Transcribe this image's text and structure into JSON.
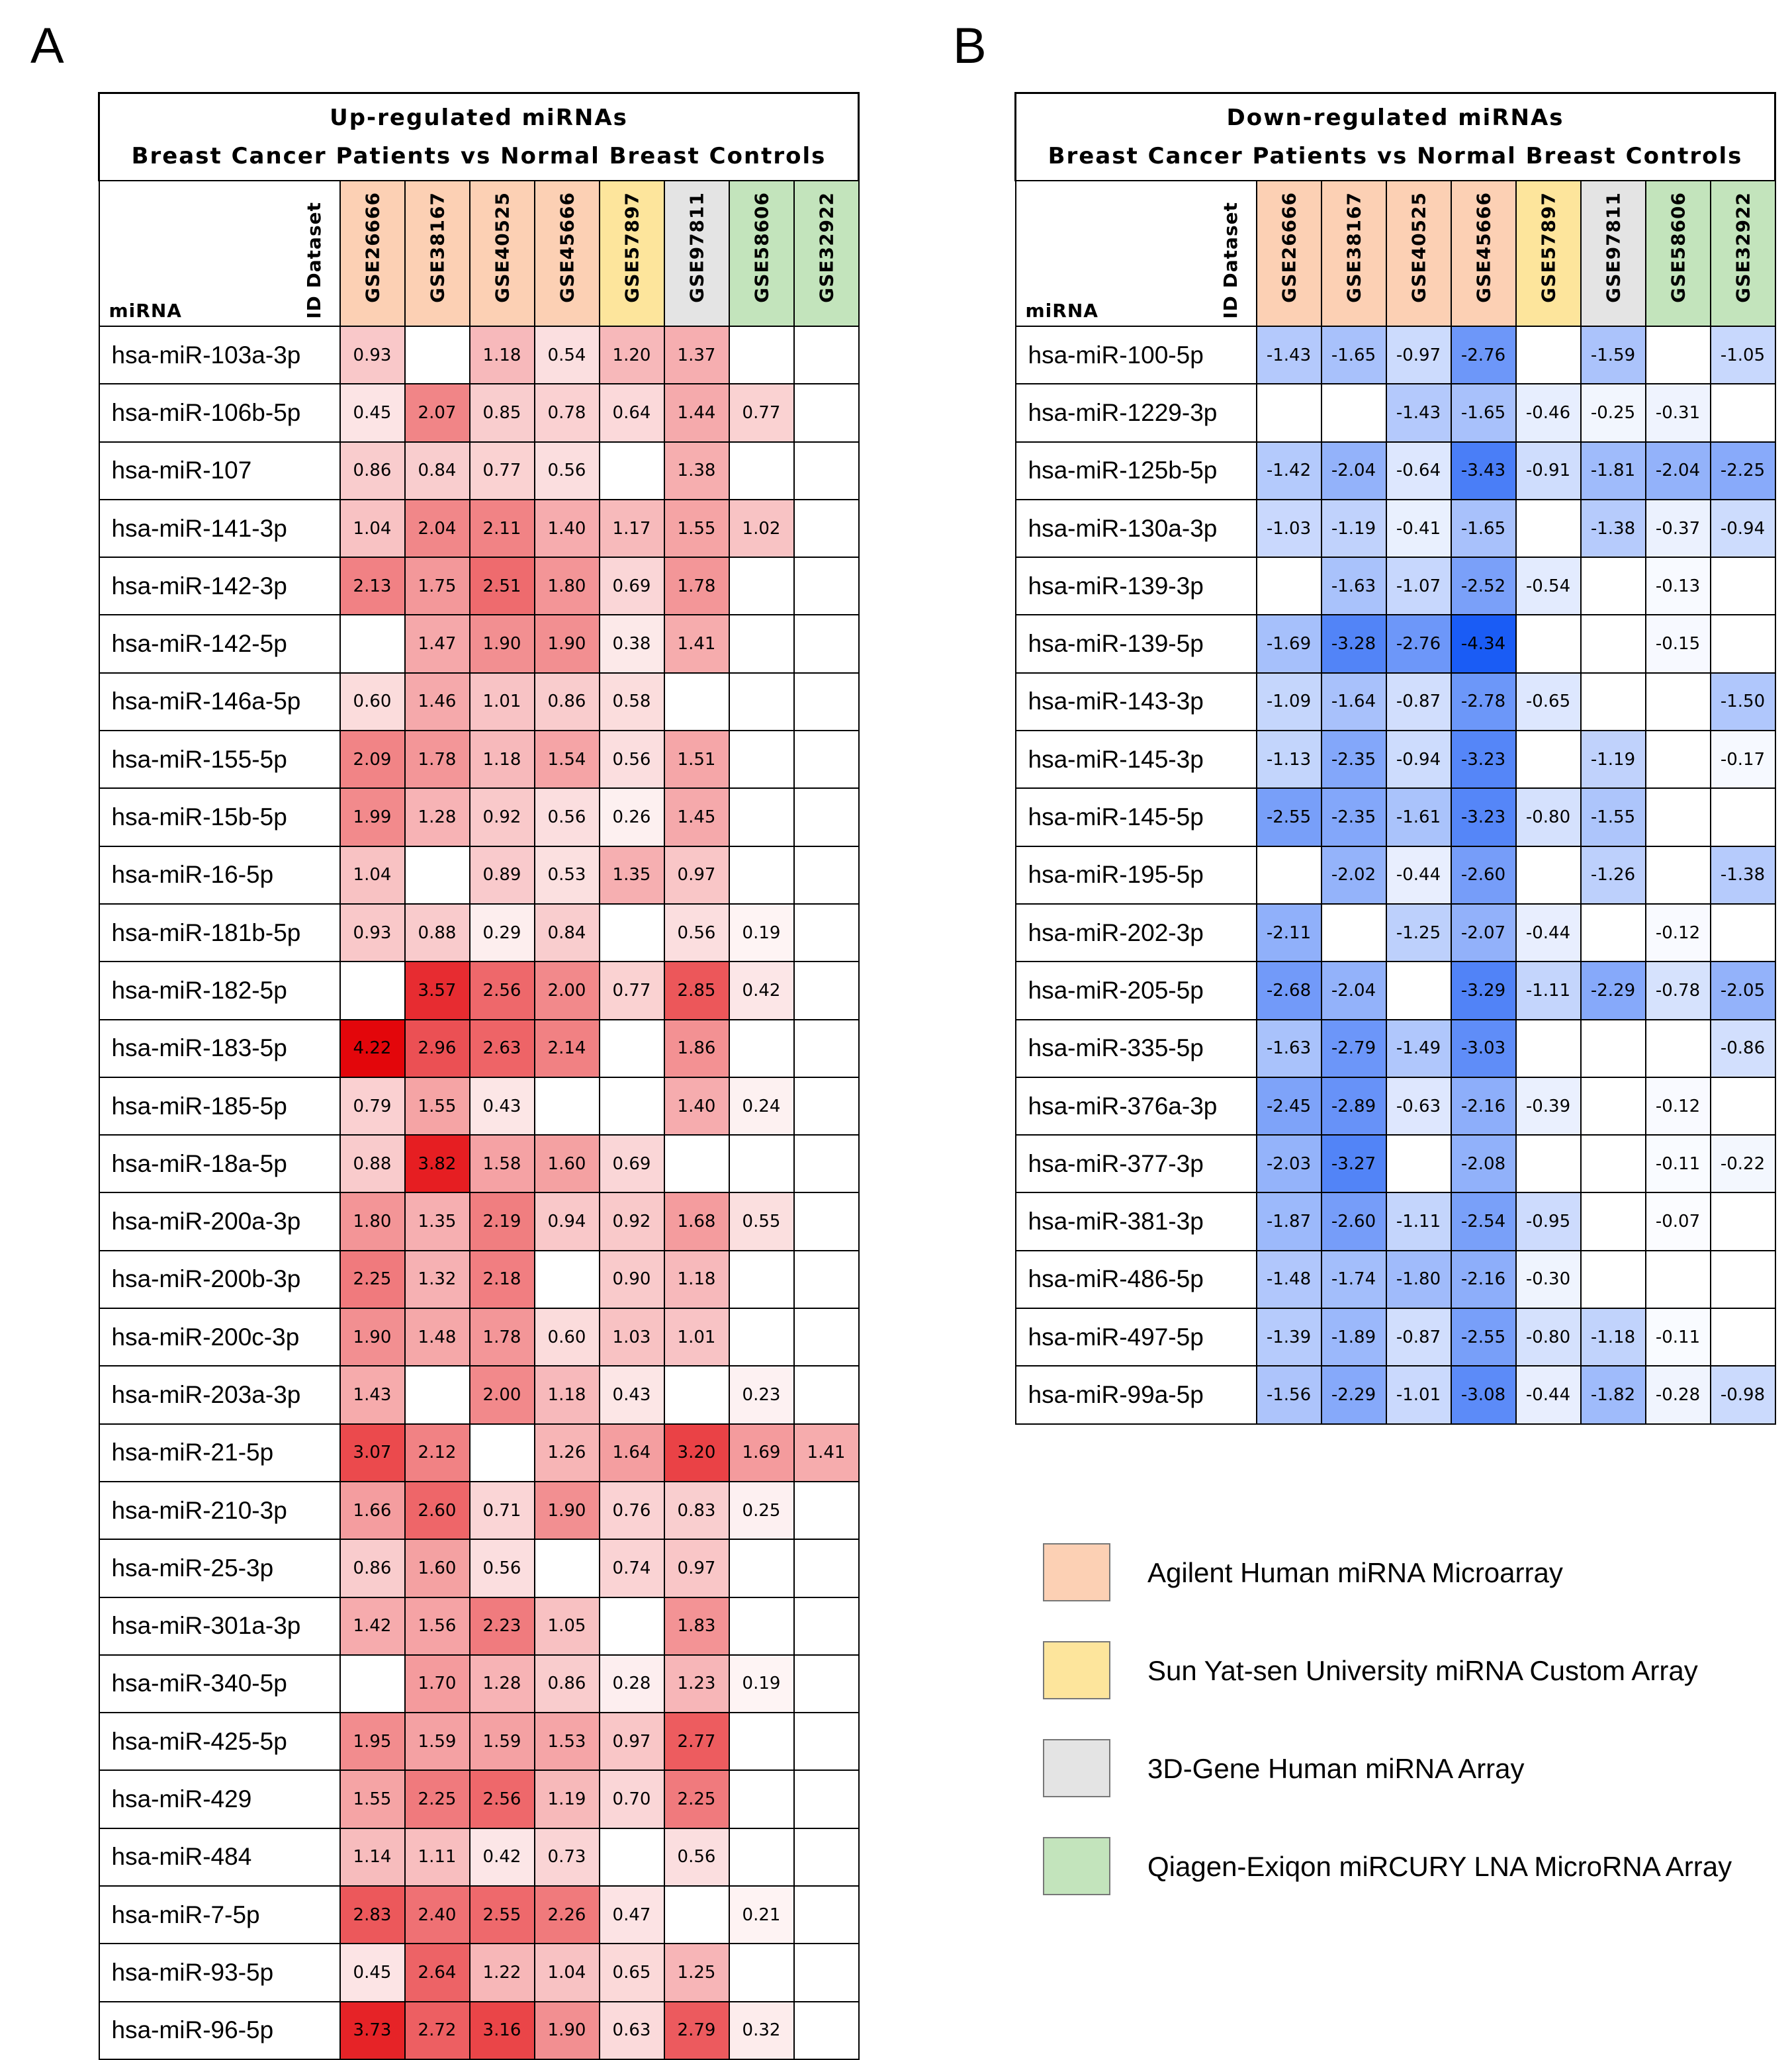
{
  "panels": {
    "a": "A",
    "b": "B"
  },
  "colors": {
    "agilent": "#fcd0b4",
    "sysu": "#fde59c",
    "dgene": "#e4e4e4",
    "qiagen": "#c3e4bc",
    "up_max": "#e3060b",
    "down_max": "#1a5cf5"
  },
  "legend": [
    {
      "platform": "agilent",
      "label": "Agilent Human miRNA Microarray"
    },
    {
      "platform": "sysu",
      "label": "Sun Yat-sen University miRNA Custom Array"
    },
    {
      "platform": "dgene",
      "label": "3D-Gene Human miRNA Array"
    },
    {
      "platform": "qiagen",
      "label": "Qiagen-Exiqon miRCURY LNA MicroRNA Array"
    }
  ],
  "chart_data": [
    {
      "type": "heatmap",
      "title_line1": "Up-regulated miRNAs",
      "title_line2": "Breast Cancer Patients vs Normal Breast Controls",
      "row_header": "miRNA",
      "column_header": "ID Dataset",
      "scale_max": 4.22,
      "columns": [
        {
          "name": "GSE26666",
          "platform": "agilent"
        },
        {
          "name": "GSE38167",
          "platform": "agilent"
        },
        {
          "name": "GSE40525",
          "platform": "agilent"
        },
        {
          "name": "GSE45666",
          "platform": "agilent"
        },
        {
          "name": "GSE57897",
          "platform": "sysu"
        },
        {
          "name": "GSE97811",
          "platform": "dgene"
        },
        {
          "name": "GSE58606",
          "platform": "qiagen"
        },
        {
          "name": "GSE32922",
          "platform": "qiagen"
        }
      ],
      "rows": [
        {
          "name": "hsa-miR-103a-3p",
          "values": [
            0.93,
            null,
            1.18,
            0.54,
            1.2,
            1.37,
            null,
            null
          ]
        },
        {
          "name": "hsa-miR-106b-5p",
          "values": [
            0.45,
            2.07,
            0.85,
            0.78,
            0.64,
            1.44,
            0.77,
            null
          ]
        },
        {
          "name": "hsa-miR-107",
          "values": [
            0.86,
            0.84,
            0.77,
            0.56,
            null,
            1.38,
            null,
            null
          ]
        },
        {
          "name": "hsa-miR-141-3p",
          "values": [
            1.04,
            2.04,
            2.11,
            1.4,
            1.17,
            1.55,
            1.02,
            null
          ]
        },
        {
          "name": "hsa-miR-142-3p",
          "values": [
            2.13,
            1.75,
            2.51,
            1.8,
            0.69,
            1.78,
            null,
            null
          ]
        },
        {
          "name": "hsa-miR-142-5p",
          "values": [
            null,
            1.47,
            1.9,
            1.9,
            0.38,
            1.41,
            null,
            null
          ]
        },
        {
          "name": "hsa-miR-146a-5p",
          "values": [
            0.6,
            1.46,
            1.01,
            0.86,
            0.58,
            null,
            null,
            null
          ]
        },
        {
          "name": "hsa-miR-155-5p",
          "values": [
            2.09,
            1.78,
            1.18,
            1.54,
            0.56,
            1.51,
            null,
            null
          ]
        },
        {
          "name": "hsa-miR-15b-5p",
          "values": [
            1.99,
            1.28,
            0.92,
            0.56,
            0.26,
            1.45,
            null,
            null
          ]
        },
        {
          "name": "hsa-miR-16-5p",
          "values": [
            1.04,
            null,
            0.89,
            0.53,
            1.35,
            0.97,
            null,
            null
          ]
        },
        {
          "name": "hsa-miR-181b-5p",
          "values": [
            0.93,
            0.88,
            0.29,
            0.84,
            null,
            0.56,
            0.19,
            null
          ]
        },
        {
          "name": "hsa-miR-182-5p",
          "values": [
            null,
            3.57,
            2.56,
            2.0,
            0.77,
            2.85,
            0.42,
            null
          ]
        },
        {
          "name": "hsa-miR-183-5p",
          "values": [
            4.22,
            2.96,
            2.63,
            2.14,
            null,
            1.86,
            null,
            null
          ]
        },
        {
          "name": "hsa-miR-185-5p",
          "values": [
            0.79,
            1.55,
            0.43,
            null,
            null,
            1.4,
            0.24,
            null
          ]
        },
        {
          "name": "hsa-miR-18a-5p",
          "values": [
            0.88,
            3.82,
            1.58,
            1.6,
            0.69,
            null,
            null,
            null
          ]
        },
        {
          "name": "hsa-miR-200a-3p",
          "values": [
            1.8,
            1.35,
            2.19,
            0.94,
            0.92,
            1.68,
            0.55,
            null
          ]
        },
        {
          "name": "hsa-miR-200b-3p",
          "values": [
            2.25,
            1.32,
            2.18,
            null,
            0.9,
            1.18,
            null,
            null
          ]
        },
        {
          "name": "hsa-miR-200c-3p",
          "values": [
            1.9,
            1.48,
            1.78,
            0.6,
            1.03,
            1.01,
            null,
            null
          ]
        },
        {
          "name": "hsa-miR-203a-3p",
          "values": [
            1.43,
            null,
            2.0,
            1.18,
            0.43,
            null,
            0.23,
            null
          ]
        },
        {
          "name": "hsa-miR-21-5p",
          "values": [
            3.07,
            2.12,
            null,
            1.26,
            1.64,
            3.2,
            1.69,
            1.41
          ]
        },
        {
          "name": "hsa-miR-210-3p",
          "values": [
            1.66,
            2.6,
            0.71,
            1.9,
            0.76,
            0.83,
            0.25,
            null
          ]
        },
        {
          "name": "hsa-miR-25-3p",
          "values": [
            0.86,
            1.6,
            0.56,
            null,
            0.74,
            0.97,
            null,
            null
          ]
        },
        {
          "name": "hsa-miR-301a-3p",
          "values": [
            1.42,
            1.56,
            2.23,
            1.05,
            null,
            1.83,
            null,
            null
          ]
        },
        {
          "name": "hsa-miR-340-5p",
          "values": [
            null,
            1.7,
            1.28,
            0.86,
            0.28,
            1.23,
            0.19,
            null
          ]
        },
        {
          "name": "hsa-miR-425-5p",
          "values": [
            1.95,
            1.59,
            1.59,
            1.53,
            0.97,
            2.77,
            null,
            null
          ]
        },
        {
          "name": "hsa-miR-429",
          "values": [
            1.55,
            2.25,
            2.56,
            1.19,
            0.7,
            2.25,
            null,
            null
          ]
        },
        {
          "name": "hsa-miR-484",
          "values": [
            1.14,
            1.11,
            0.42,
            0.73,
            null,
            0.56,
            null,
            null
          ]
        },
        {
          "name": "hsa-miR-7-5p",
          "values": [
            2.83,
            2.4,
            2.55,
            2.26,
            0.47,
            null,
            0.21,
            null
          ]
        },
        {
          "name": "hsa-miR-93-5p",
          "values": [
            0.45,
            2.64,
            1.22,
            1.04,
            0.65,
            1.25,
            null,
            null
          ]
        },
        {
          "name": "hsa-miR-96-5p",
          "values": [
            3.73,
            2.72,
            3.16,
            1.9,
            0.63,
            2.79,
            0.32,
            null
          ]
        }
      ]
    },
    {
      "type": "heatmap",
      "title_line1": "Down-regulated miRNAs",
      "title_line2": "Breast Cancer Patients vs Normal Breast Controls",
      "row_header": "miRNA",
      "column_header": "ID Dataset",
      "scale_max": 4.34,
      "columns": [
        {
          "name": "GSE26666",
          "platform": "agilent"
        },
        {
          "name": "GSE38167",
          "platform": "agilent"
        },
        {
          "name": "GSE40525",
          "platform": "agilent"
        },
        {
          "name": "GSE45666",
          "platform": "agilent"
        },
        {
          "name": "GSE57897",
          "platform": "sysu"
        },
        {
          "name": "GSE97811",
          "platform": "dgene"
        },
        {
          "name": "GSE58606",
          "platform": "qiagen"
        },
        {
          "name": "GSE32922",
          "platform": "qiagen"
        }
      ],
      "rows": [
        {
          "name": "hsa-miR-100-5p",
          "values": [
            -1.43,
            -1.65,
            -0.97,
            -2.76,
            null,
            -1.59,
            null,
            -1.05
          ]
        },
        {
          "name": "hsa-miR-1229-3p",
          "values": [
            null,
            null,
            -1.43,
            -1.65,
            -0.46,
            -0.25,
            -0.31,
            null
          ]
        },
        {
          "name": "hsa-miR-125b-5p",
          "values": [
            -1.42,
            -2.04,
            -0.64,
            -3.43,
            -0.91,
            -1.81,
            -2.04,
            -2.25
          ]
        },
        {
          "name": "hsa-miR-130a-3p",
          "values": [
            -1.03,
            -1.19,
            -0.41,
            -1.65,
            null,
            -1.38,
            -0.37,
            -0.94
          ]
        },
        {
          "name": "hsa-miR-139-3p",
          "values": [
            null,
            -1.63,
            -1.07,
            -2.52,
            -0.54,
            null,
            -0.13,
            null
          ]
        },
        {
          "name": "hsa-miR-139-5p",
          "values": [
            -1.69,
            -3.28,
            -2.76,
            -4.34,
            null,
            null,
            -0.15,
            null
          ]
        },
        {
          "name": "hsa-miR-143-3p",
          "values": [
            -1.09,
            -1.64,
            -0.87,
            -2.78,
            -0.65,
            null,
            null,
            -1.5
          ]
        },
        {
          "name": "hsa-miR-145-3p",
          "values": [
            -1.13,
            -2.35,
            -0.94,
            -3.23,
            null,
            -1.19,
            null,
            -0.17
          ]
        },
        {
          "name": "hsa-miR-145-5p",
          "values": [
            -2.55,
            -2.35,
            -1.61,
            -3.23,
            -0.8,
            -1.55,
            null,
            null
          ]
        },
        {
          "name": "hsa-miR-195-5p",
          "values": [
            null,
            -2.02,
            -0.44,
            -2.6,
            null,
            -1.26,
            null,
            -1.38
          ]
        },
        {
          "name": "hsa-miR-202-3p",
          "values": [
            -2.11,
            null,
            -1.25,
            -2.07,
            -0.44,
            null,
            -0.12,
            null
          ]
        },
        {
          "name": "hsa-miR-205-5p",
          "values": [
            -2.68,
            -2.04,
            null,
            -3.29,
            -1.11,
            -2.29,
            -0.78,
            -2.05
          ]
        },
        {
          "name": "hsa-miR-335-5p",
          "values": [
            -1.63,
            -2.79,
            -1.49,
            -3.03,
            null,
            null,
            null,
            -0.86
          ]
        },
        {
          "name": "hsa-miR-376a-3p",
          "values": [
            -2.45,
            -2.89,
            -0.63,
            -2.16,
            -0.39,
            null,
            -0.12,
            null
          ]
        },
        {
          "name": "hsa-miR-377-3p",
          "values": [
            -2.03,
            -3.27,
            null,
            -2.08,
            null,
            null,
            -0.11,
            -0.22
          ]
        },
        {
          "name": "hsa-miR-381-3p",
          "values": [
            -1.87,
            -2.6,
            -1.11,
            -2.54,
            -0.95,
            null,
            -0.07,
            null
          ]
        },
        {
          "name": "hsa-miR-486-5p",
          "values": [
            -1.48,
            -1.74,
            -1.8,
            -2.16,
            -0.3,
            null,
            null,
            null
          ]
        },
        {
          "name": "hsa-miR-497-5p",
          "values": [
            -1.39,
            -1.89,
            -0.87,
            -2.55,
            -0.8,
            -1.18,
            -0.11,
            null
          ]
        },
        {
          "name": "hsa-miR-99a-5p",
          "values": [
            -1.56,
            -2.29,
            -1.01,
            -3.08,
            -0.44,
            -1.82,
            -0.28,
            -0.98
          ]
        }
      ]
    }
  ]
}
